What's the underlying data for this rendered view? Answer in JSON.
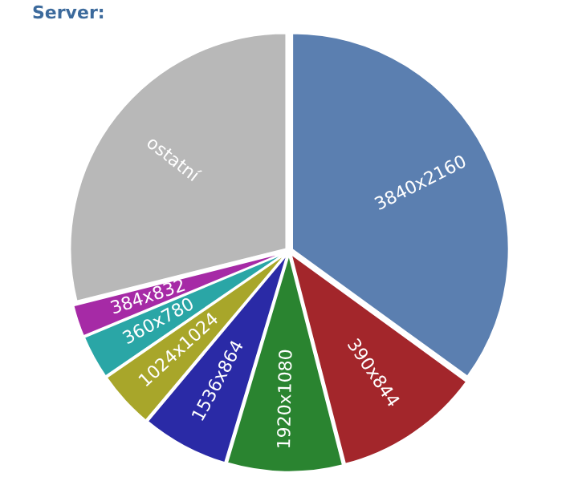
{
  "chart_data": {
    "type": "pie",
    "title": "Server:",
    "categories": [
      "3840x2160",
      "390x844",
      "1920x1080",
      "1536x864",
      "1024x1024",
      "360x780",
      "384x832",
      "ostatní"
    ],
    "values": [
      35,
      11,
      8.6,
      6.5,
      4.3,
      3.3,
      2.4,
      28.9
    ],
    "colors": [
      "#5b7fb0",
      "#a3262b",
      "#2a8430",
      "#2a2aa6",
      "#a8a62a",
      "#2aa6a6",
      "#a62aa6",
      "#b8b8b8"
    ],
    "legend": false
  }
}
